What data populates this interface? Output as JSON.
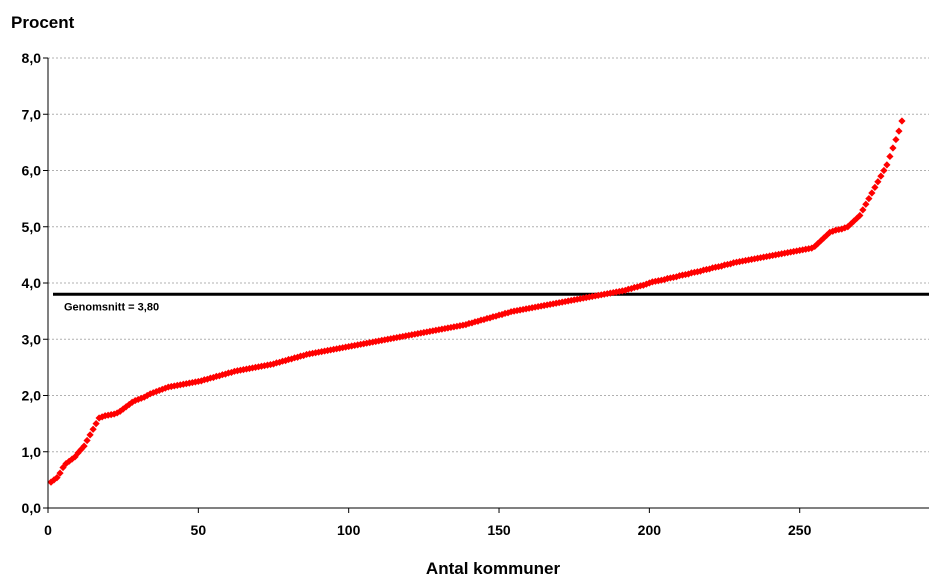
{
  "chart_data": {
    "type": "scatter",
    "ylabel": "Procent",
    "xlabel": "Antal kommuner",
    "xlim": [
      0,
      293
    ],
    "ylim": [
      0,
      8
    ],
    "x_ticks": [
      0,
      50,
      100,
      150,
      200,
      250
    ],
    "y_ticks": [
      "0,0",
      "1,0",
      "2,0",
      "3,0",
      "4,0",
      "5,0",
      "6,0",
      "7,0",
      "8,0"
    ],
    "grid": true,
    "marker_color": "#ff0000",
    "reference_line": {
      "label": "Genomsnitt = 3,80",
      "value": 3.8,
      "color": "#000000"
    },
    "series": [
      {
        "values": [
          0.46,
          0.5,
          0.54,
          0.62,
          0.72,
          0.79,
          0.83,
          0.87,
          0.91,
          0.98,
          1.04,
          1.1,
          1.2,
          1.3,
          1.4,
          1.5,
          1.6,
          1.62,
          1.64,
          1.65,
          1.66,
          1.67,
          1.69,
          1.72,
          1.76,
          1.8,
          1.84,
          1.88,
          1.91,
          1.93,
          1.95,
          1.97,
          2.0,
          2.03,
          2.05,
          2.07,
          2.09,
          2.11,
          2.13,
          2.15,
          2.16,
          2.17,
          2.18,
          2.19,
          2.2,
          2.21,
          2.22,
          2.23,
          2.24,
          2.25,
          2.26,
          2.28,
          2.29,
          2.31,
          2.32,
          2.34,
          2.35,
          2.37,
          2.38,
          2.4,
          2.41,
          2.43,
          2.44,
          2.45,
          2.46,
          2.47,
          2.48,
          2.49,
          2.5,
          2.51,
          2.52,
          2.53,
          2.54,
          2.55,
          2.56,
          2.58,
          2.59,
          2.61,
          2.62,
          2.64,
          2.65,
          2.67,
          2.68,
          2.7,
          2.71,
          2.73,
          2.74,
          2.75,
          2.76,
          2.77,
          2.78,
          2.79,
          2.8,
          2.81,
          2.82,
          2.83,
          2.84,
          2.85,
          2.86,
          2.87,
          2.88,
          2.89,
          2.9,
          2.91,
          2.92,
          2.93,
          2.94,
          2.95,
          2.96,
          2.97,
          2.98,
          2.99,
          3.0,
          3.01,
          3.02,
          3.03,
          3.04,
          3.05,
          3.06,
          3.07,
          3.08,
          3.09,
          3.1,
          3.11,
          3.12,
          3.13,
          3.14,
          3.15,
          3.16,
          3.17,
          3.18,
          3.19,
          3.2,
          3.21,
          3.22,
          3.23,
          3.24,
          3.25,
          3.26,
          3.28,
          3.29,
          3.31,
          3.32,
          3.34,
          3.35,
          3.37,
          3.38,
          3.4,
          3.41,
          3.43,
          3.44,
          3.46,
          3.47,
          3.49,
          3.5,
          3.51,
          3.52,
          3.53,
          3.54,
          3.55,
          3.56,
          3.57,
          3.58,
          3.59,
          3.6,
          3.61,
          3.62,
          3.63,
          3.64,
          3.65,
          3.66,
          3.67,
          3.68,
          3.69,
          3.7,
          3.71,
          3.72,
          3.73,
          3.74,
          3.75,
          3.76,
          3.77,
          3.78,
          3.79,
          3.8,
          3.81,
          3.82,
          3.83,
          3.84,
          3.85,
          3.86,
          3.87,
          3.89,
          3.9,
          3.92,
          3.93,
          3.95,
          3.96,
          3.98,
          4.0,
          4.02,
          4.03,
          4.04,
          4.05,
          4.06,
          4.08,
          4.09,
          4.1,
          4.11,
          4.13,
          4.14,
          4.15,
          4.16,
          4.18,
          4.19,
          4.2,
          4.21,
          4.23,
          4.24,
          4.25,
          4.27,
          4.28,
          4.29,
          4.3,
          4.32,
          4.33,
          4.34,
          4.36,
          4.37,
          4.38,
          4.39,
          4.4,
          4.41,
          4.42,
          4.43,
          4.44,
          4.45,
          4.46,
          4.47,
          4.48,
          4.49,
          4.5,
          4.51,
          4.52,
          4.53,
          4.54,
          4.55,
          4.56,
          4.57,
          4.58,
          4.59,
          4.6,
          4.61,
          4.62,
          4.65,
          4.7,
          4.75,
          4.8,
          4.85,
          4.9,
          4.92,
          4.94,
          4.95,
          4.96,
          4.98,
          5.0,
          5.05,
          5.1,
          5.15,
          5.2,
          5.3,
          5.4,
          5.5,
          5.6,
          5.7,
          5.8,
          5.9,
          6.0,
          6.1,
          6.25,
          6.4,
          6.55,
          6.7,
          6.88
        ]
      }
    ]
  }
}
